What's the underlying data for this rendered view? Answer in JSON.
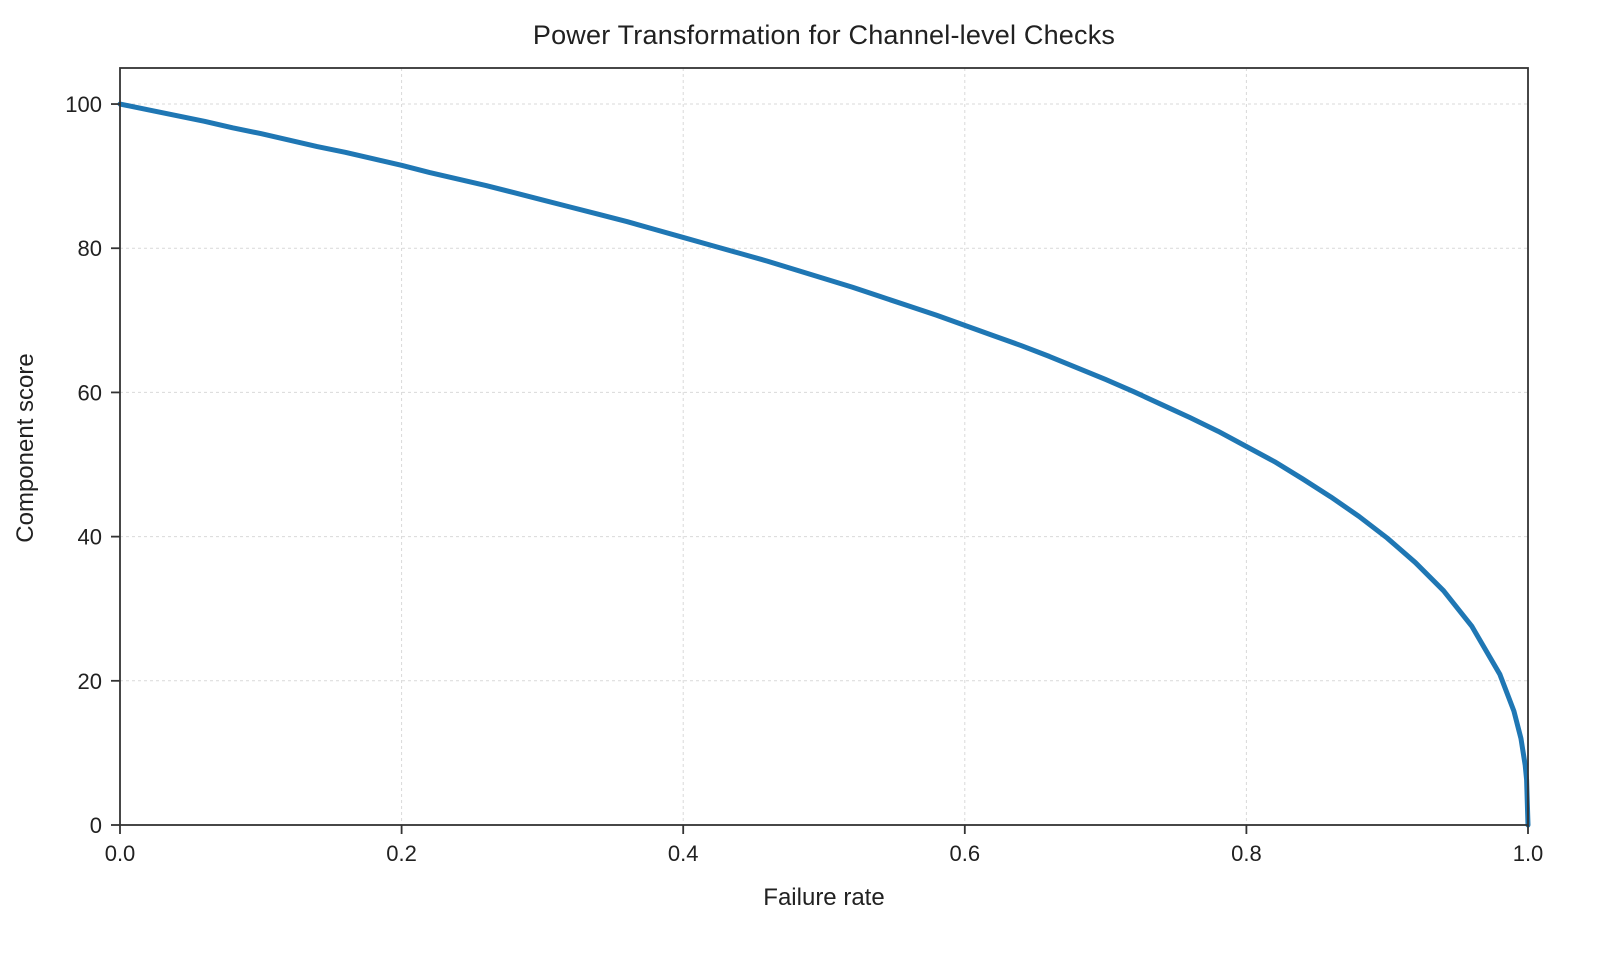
{
  "figure": {
    "background": "#ffffff"
  },
  "chart_data": {
    "type": "line",
    "title": "Power Transformation for Channel-level Checks",
    "xlabel": "Failure rate",
    "ylabel": "Component score",
    "xlim": [
      0,
      1
    ],
    "ylim": [
      0,
      105
    ],
    "x_ticks": [
      0.0,
      0.2,
      0.4,
      0.6,
      0.8,
      1.0
    ],
    "x_tick_labels": [
      "0.0",
      "0.2",
      "0.4",
      "0.6",
      "0.8",
      "1.0"
    ],
    "y_ticks": [
      0,
      20,
      40,
      60,
      80,
      100
    ],
    "y_tick_labels": [
      "0",
      "20",
      "40",
      "60",
      "80",
      "100"
    ],
    "grid": true,
    "grid_style": "dashed",
    "grid_color": "#d9d9d9",
    "spine_color": "#333333",
    "text_color": "#212121",
    "legend": false,
    "series": [
      {
        "name": "component-score-curve",
        "color": "#1f77b4",
        "line_width": 5,
        "x": [
          0.0,
          0.02,
          0.04,
          0.06,
          0.08,
          0.1,
          0.12,
          0.14,
          0.16,
          0.18,
          0.2,
          0.22,
          0.24,
          0.26,
          0.28,
          0.3,
          0.32,
          0.34,
          0.36,
          0.38,
          0.4,
          0.42,
          0.44,
          0.46,
          0.48,
          0.5,
          0.52,
          0.54,
          0.56,
          0.58,
          0.6,
          0.62,
          0.64,
          0.66,
          0.68,
          0.7,
          0.72,
          0.74,
          0.76,
          0.78,
          0.8,
          0.82,
          0.84,
          0.86,
          0.88,
          0.9,
          0.92,
          0.94,
          0.96,
          0.98,
          0.99,
          0.995,
          0.998,
          0.999,
          1.0
        ],
        "y": [
          100.0,
          99.2,
          98.4,
          97.6,
          96.7,
          95.9,
          95.0,
          94.1,
          93.3,
          92.4,
          91.5,
          90.5,
          89.6,
          88.7,
          87.7,
          86.7,
          85.7,
          84.7,
          83.7,
          82.6,
          81.5,
          80.4,
          79.3,
          78.2,
          77.0,
          75.8,
          74.6,
          73.3,
          72.0,
          70.7,
          69.3,
          67.9,
          66.5,
          65.0,
          63.4,
          61.8,
          60.1,
          58.3,
          56.5,
          54.6,
          52.5,
          50.4,
          48.0,
          45.5,
          42.8,
          39.8,
          36.4,
          32.5,
          27.6,
          20.9,
          15.8,
          12.0,
          8.3,
          6.3,
          0.0
        ]
      }
    ]
  }
}
